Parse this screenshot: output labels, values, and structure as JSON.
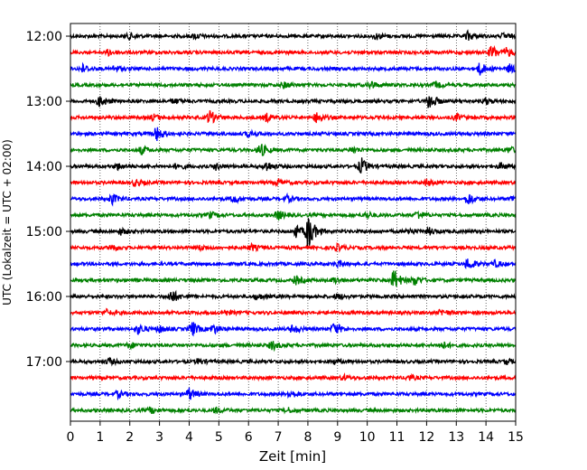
{
  "chart_data": {
    "type": "line",
    "title": "",
    "xlabel": "Zeit  [min]",
    "ylabel": "UTC (Lokalzeit = UTC + 02:00)",
    "xlim": [
      0,
      15
    ],
    "x_ticks": [
      "0",
      "1",
      "2",
      "3",
      "4",
      "5",
      "6",
      "7",
      "8",
      "9",
      "10",
      "11",
      "12",
      "13",
      "14",
      "15"
    ],
    "y_ticks": [
      "12:00",
      "13:00",
      "14:00",
      "15:00",
      "16:00",
      "17:00"
    ],
    "grid": "vertical dotted at each minute",
    "legend": "none",
    "trace_colors": [
      "#000000",
      "#ff0000",
      "#0000ff",
      "#008000"
    ],
    "traces": [
      {
        "start": "12:00",
        "color": "#000000",
        "events": [
          [
            2.0,
            0.3
          ],
          [
            4.2,
            0.25
          ],
          [
            10.3,
            0.3
          ],
          [
            13.4,
            0.45
          ],
          [
            14.6,
            0.25
          ]
        ]
      },
      {
        "start": "12:15",
        "color": "#ff0000",
        "events": [
          [
            1.3,
            0.3
          ],
          [
            14.2,
            0.7
          ],
          [
            14.7,
            0.4
          ]
        ]
      },
      {
        "start": "12:30",
        "color": "#0000ff",
        "events": [
          [
            0.4,
            0.4
          ],
          [
            1.5,
            0.3
          ],
          [
            13.8,
            0.6
          ],
          [
            14.8,
            0.4
          ]
        ]
      },
      {
        "start": "12:45",
        "color": "#008000",
        "events": [
          [
            7.2,
            0.3
          ],
          [
            10.1,
            0.4
          ],
          [
            12.3,
            0.3
          ]
        ]
      },
      {
        "start": "13:00",
        "color": "#000000",
        "events": [
          [
            1.0,
            0.6
          ],
          [
            3.5,
            0.25
          ],
          [
            12.1,
            0.9
          ],
          [
            14.0,
            0.3
          ]
        ]
      },
      {
        "start": "13:15",
        "color": "#ff0000",
        "events": [
          [
            2.8,
            0.3
          ],
          [
            4.7,
            0.7
          ],
          [
            6.6,
            0.4
          ],
          [
            8.3,
            0.5
          ],
          [
            13.0,
            0.3
          ]
        ]
      },
      {
        "start": "13:30",
        "color": "#0000ff",
        "events": [
          [
            2.9,
            0.7
          ],
          [
            6.0,
            0.3
          ]
        ]
      },
      {
        "start": "13:45",
        "color": "#008000",
        "events": [
          [
            2.4,
            0.4
          ],
          [
            6.4,
            0.7
          ],
          [
            9.5,
            0.3
          ],
          [
            14.8,
            0.3
          ]
        ]
      },
      {
        "start": "14:00",
        "color": "#000000",
        "events": [
          [
            1.6,
            0.3
          ],
          [
            3.6,
            0.3
          ],
          [
            4.9,
            0.3
          ],
          [
            6.6,
            0.5
          ],
          [
            9.8,
            0.8
          ],
          [
            14.5,
            0.3
          ]
        ]
      },
      {
        "start": "14:15",
        "color": "#ff0000",
        "events": [
          [
            2.2,
            0.3
          ],
          [
            7.0,
            0.3
          ],
          [
            12.0,
            0.3
          ]
        ]
      },
      {
        "start": "14:30",
        "color": "#0000ff",
        "events": [
          [
            1.4,
            0.5
          ],
          [
            5.5,
            0.4
          ],
          [
            7.3,
            0.3
          ],
          [
            13.4,
            0.6
          ],
          [
            14.9,
            0.3
          ]
        ]
      },
      {
        "start": "14:45",
        "color": "#008000",
        "events": [
          [
            4.7,
            0.3
          ],
          [
            7.0,
            0.45
          ],
          [
            10.0,
            0.3
          ],
          [
            11.7,
            0.4
          ]
        ]
      },
      {
        "start": "15:00",
        "color": "#000000",
        "events": [
          [
            1.7,
            0.3
          ],
          [
            7.6,
            0.55
          ],
          [
            8.0,
            1.9
          ],
          [
            11.4,
            0.3
          ],
          [
            12.1,
            0.3
          ]
        ]
      },
      {
        "start": "15:15",
        "color": "#ff0000",
        "events": [
          [
            1.4,
            0.3
          ],
          [
            4.4,
            0.25
          ],
          [
            6.1,
            0.3
          ],
          [
            9.0,
            0.3
          ]
        ]
      },
      {
        "start": "15:30",
        "color": "#0000ff",
        "events": [
          [
            9.0,
            0.3
          ],
          [
            13.4,
            0.6
          ],
          [
            14.3,
            0.3
          ]
        ]
      },
      {
        "start": "15:45",
        "color": "#008000",
        "events": [
          [
            7.6,
            0.4
          ],
          [
            10.9,
            1.1
          ],
          [
            11.6,
            0.5
          ],
          [
            8.9,
            0.3
          ]
        ]
      },
      {
        "start": "16:00",
        "color": "#000000",
        "events": [
          [
            3.4,
            0.7
          ],
          [
            6.3,
            0.3
          ],
          [
            9.0,
            0.25
          ]
        ]
      },
      {
        "start": "16:15",
        "color": "#ff0000",
        "events": [
          [
            1.2,
            0.3
          ],
          [
            5.2,
            0.25
          ],
          [
            12.5,
            0.3
          ]
        ]
      },
      {
        "start": "16:30",
        "color": "#0000ff",
        "events": [
          [
            2.3,
            0.5
          ],
          [
            3.0,
            0.35
          ],
          [
            4.1,
            0.75
          ],
          [
            4.8,
            0.5
          ],
          [
            7.5,
            0.45
          ],
          [
            8.9,
            0.65
          ]
        ]
      },
      {
        "start": "16:45",
        "color": "#008000",
        "events": [
          [
            2.0,
            0.3
          ],
          [
            6.8,
            0.45
          ],
          [
            12.5,
            0.4
          ]
        ]
      },
      {
        "start": "17:00",
        "color": "#000000",
        "events": [
          [
            1.3,
            0.3
          ],
          [
            4.3,
            0.25
          ],
          [
            8.9,
            0.25
          ],
          [
            14.7,
            0.25
          ]
        ]
      },
      {
        "start": "17:15",
        "color": "#ff0000",
        "events": [
          [
            9.2,
            0.25
          ],
          [
            11.4,
            0.25
          ]
        ]
      },
      {
        "start": "17:30",
        "color": "#0000ff",
        "events": [
          [
            1.6,
            0.3
          ],
          [
            4.0,
            0.6
          ],
          [
            7.4,
            0.4
          ]
        ]
      },
      {
        "start": "17:45",
        "color": "#008000",
        "events": [
          [
            2.7,
            0.3
          ],
          [
            4.9,
            0.25
          ],
          [
            7.3,
            0.25
          ]
        ]
      }
    ]
  }
}
